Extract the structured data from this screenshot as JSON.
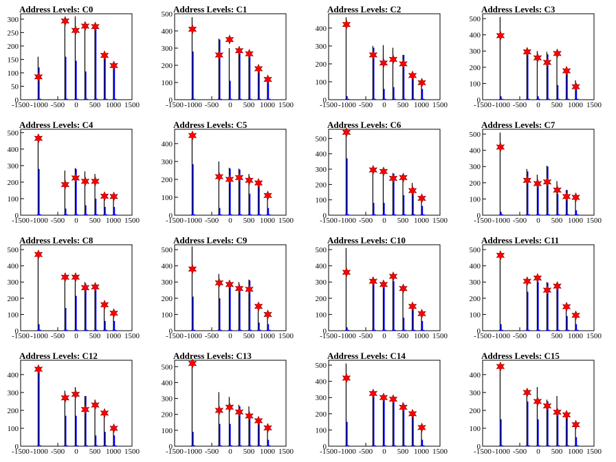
{
  "chart_data": [
    {
      "type": "histogram",
      "title": "Address Levels: C0",
      "ylim": [
        0,
        320
      ],
      "yticks": [
        0,
        50,
        100,
        150,
        200,
        250,
        300
      ],
      "xlim": [
        -1500,
        1500
      ],
      "xticks": [
        -1500,
        -1000,
        -500,
        0,
        500,
        1000,
        1500
      ],
      "peaks": [
        {
          "x": -1020,
          "black": 160,
          "blue": 120,
          "star": 85
        },
        {
          "x": -300,
          "black": 295,
          "blue": 160,
          "star": 293
        },
        {
          "x": -20,
          "black": 310,
          "blue": 145,
          "star": 258
        },
        {
          "x": 240,
          "black": 290,
          "blue": 105,
          "star": 274
        },
        {
          "x": 510,
          "black": 285,
          "blue": 280,
          "star": 272
        },
        {
          "x": 760,
          "black": 170,
          "blue": 165,
          "star": 165
        },
        {
          "x": 1010,
          "black": 130,
          "blue": 125,
          "star": 127
        }
      ]
    },
    {
      "type": "histogram",
      "title": "Address Levels: C1",
      "ylim": [
        0,
        500
      ],
      "yticks": [
        0,
        100,
        200,
        300,
        400,
        500
      ],
      "xlim": [
        -1500,
        1500
      ],
      "xticks": [
        -1500,
        -1000,
        -500,
        0,
        500,
        1000,
        1500
      ],
      "peaks": [
        {
          "x": -1020,
          "black": 480,
          "blue": 280,
          "star": 410
        },
        {
          "x": -300,
          "black": 355,
          "blue": 350,
          "star": 260
        },
        {
          "x": -20,
          "black": 300,
          "blue": 110,
          "star": 350
        },
        {
          "x": 240,
          "black": 285,
          "blue": 280,
          "star": 285
        },
        {
          "x": 510,
          "black": 270,
          "blue": 265,
          "star": 267
        },
        {
          "x": 760,
          "black": 180,
          "blue": 175,
          "star": 180
        },
        {
          "x": 1010,
          "black": 120,
          "blue": 115,
          "star": 118
        }
      ]
    },
    {
      "type": "histogram",
      "title": "Address Levels: C2",
      "ylim": [
        0,
        480
      ],
      "yticks": [
        0,
        100,
        200,
        300,
        400
      ],
      "xlim": [
        -1500,
        1500
      ],
      "xticks": [
        -1500,
        -1000,
        -500,
        0,
        500,
        1000,
        1500
      ],
      "peaks": [
        {
          "x": -1020,
          "black": 460,
          "blue": 20,
          "star": 420
        },
        {
          "x": -300,
          "black": 300,
          "blue": 290,
          "star": 250
        },
        {
          "x": -20,
          "black": 305,
          "blue": 60,
          "star": 205
        },
        {
          "x": 240,
          "black": 290,
          "blue": 70,
          "star": 225
        },
        {
          "x": 510,
          "black": 250,
          "blue": 250,
          "star": 200
        },
        {
          "x": 760,
          "black": 150,
          "blue": 145,
          "star": 135
        },
        {
          "x": 1010,
          "black": 105,
          "blue": 60,
          "star": 95
        }
      ]
    },
    {
      "type": "histogram",
      "title": "Address Levels: C3",
      "ylim": [
        0,
        530
      ],
      "yticks": [
        0,
        100,
        200,
        300,
        400,
        500
      ],
      "xlim": [
        -1500,
        1500
      ],
      "xticks": [
        -1500,
        -1000,
        -500,
        0,
        500,
        1000,
        1500
      ],
      "peaks": [
        {
          "x": -1020,
          "black": 510,
          "blue": 20,
          "star": 395
        },
        {
          "x": -300,
          "black": 300,
          "blue": 295,
          "star": 295
        },
        {
          "x": -20,
          "black": 300,
          "blue": 20,
          "star": 258
        },
        {
          "x": 240,
          "black": 295,
          "blue": 280,
          "star": 230
        },
        {
          "x": 510,
          "black": 300,
          "blue": 90,
          "star": 285
        },
        {
          "x": 760,
          "black": 180,
          "blue": 175,
          "star": 178
        },
        {
          "x": 1010,
          "black": 120,
          "blue": 100,
          "star": 80
        }
      ]
    },
    {
      "type": "histogram",
      "title": "Address Levels: C4",
      "ylim": [
        0,
        520
      ],
      "yticks": [
        0,
        100,
        200,
        300,
        400,
        500
      ],
      "xlim": [
        -1500,
        1500
      ],
      "xticks": [
        -1500,
        -1000,
        -500,
        0,
        500,
        1000,
        1500
      ],
      "peaks": [
        {
          "x": -1020,
          "black": 490,
          "blue": 280,
          "star": 465
        },
        {
          "x": -300,
          "black": 270,
          "blue": 40,
          "star": 185
        },
        {
          "x": -20,
          "black": 285,
          "blue": 280,
          "star": 225
        },
        {
          "x": 240,
          "black": 265,
          "blue": 60,
          "star": 205
        },
        {
          "x": 510,
          "black": 250,
          "blue": 100,
          "star": 205
        },
        {
          "x": 760,
          "black": 120,
          "blue": 50,
          "star": 115
        },
        {
          "x": 1010,
          "black": 120,
          "blue": 50,
          "star": 113
        }
      ]
    },
    {
      "type": "histogram",
      "title": "Address Levels: C5",
      "ylim": [
        0,
        480
      ],
      "yticks": [
        0,
        100,
        200,
        300,
        400
      ],
      "xlim": [
        -1500,
        1500
      ],
      "xticks": [
        -1500,
        -1000,
        -500,
        0,
        500,
        1000,
        1500
      ],
      "peaks": [
        {
          "x": -1020,
          "black": 460,
          "blue": 285,
          "star": 445
        },
        {
          "x": -300,
          "black": 300,
          "blue": 40,
          "star": 215
        },
        {
          "x": -20,
          "black": 265,
          "blue": 260,
          "star": 200
        },
        {
          "x": 240,
          "black": 260,
          "blue": 255,
          "star": 210
        },
        {
          "x": 510,
          "black": 230,
          "blue": 120,
          "star": 195
        },
        {
          "x": 760,
          "black": 195,
          "blue": 190,
          "star": 180
        },
        {
          "x": 1010,
          "black": 110,
          "blue": 40,
          "star": 110
        }
      ]
    },
    {
      "type": "histogram",
      "title": "Address Levels: C6",
      "ylim": [
        0,
        560
      ],
      "yticks": [
        0,
        100,
        200,
        300,
        400,
        500
      ],
      "xlim": [
        -1500,
        1500
      ],
      "xticks": [
        -1500,
        -1000,
        -500,
        0,
        500,
        1000,
        1500
      ],
      "peaks": [
        {
          "x": -1020,
          "black": 540,
          "blue": 370,
          "star": 540
        },
        {
          "x": -300,
          "black": 300,
          "blue": 80,
          "star": 295
        },
        {
          "x": -20,
          "black": 300,
          "blue": 80,
          "star": 285
        },
        {
          "x": 240,
          "black": 275,
          "blue": 270,
          "star": 240
        },
        {
          "x": 510,
          "black": 250,
          "blue": 130,
          "star": 245
        },
        {
          "x": 760,
          "black": 210,
          "blue": 180,
          "star": 160
        },
        {
          "x": 1010,
          "black": 115,
          "blue": 60,
          "star": 110
        }
      ]
    },
    {
      "type": "histogram",
      "title": "Address Levels: C7",
      "ylim": [
        0,
        530
      ],
      "yticks": [
        0,
        100,
        200,
        300,
        400,
        500
      ],
      "xlim": [
        -1500,
        1500
      ],
      "xticks": [
        -1500,
        -1000,
        -500,
        0,
        500,
        1000,
        1500
      ],
      "peaks": [
        {
          "x": -1020,
          "black": 510,
          "blue": 20,
          "star": 420
        },
        {
          "x": -300,
          "black": 285,
          "blue": 270,
          "star": 215
        },
        {
          "x": -20,
          "black": 250,
          "blue": 200,
          "star": 195
        },
        {
          "x": 240,
          "black": 305,
          "blue": 300,
          "star": 205
        },
        {
          "x": 510,
          "black": 210,
          "blue": 130,
          "star": 155
        },
        {
          "x": 760,
          "black": 155,
          "blue": 155,
          "star": 115
        },
        {
          "x": 1010,
          "black": 115,
          "blue": 30,
          "star": 110
        }
      ]
    },
    {
      "type": "histogram",
      "title": "Address Levels: C8",
      "ylim": [
        0,
        530
      ],
      "yticks": [
        0,
        100,
        200,
        300,
        400,
        500
      ],
      "xlim": [
        -1500,
        1500
      ],
      "xticks": [
        -1500,
        -1000,
        -500,
        0,
        500,
        1000,
        1500
      ],
      "peaks": [
        {
          "x": -1020,
          "black": 490,
          "blue": 40,
          "star": 470
        },
        {
          "x": -300,
          "black": 330,
          "blue": 140,
          "star": 330
        },
        {
          "x": -20,
          "black": 335,
          "blue": 215,
          "star": 330
        },
        {
          "x": 240,
          "black": 300,
          "blue": 290,
          "star": 265
        },
        {
          "x": 510,
          "black": 285,
          "blue": 280,
          "star": 270
        },
        {
          "x": 760,
          "black": 170,
          "blue": 60,
          "star": 160
        },
        {
          "x": 1010,
          "black": 110,
          "blue": 60,
          "star": 108
        }
      ]
    },
    {
      "type": "histogram",
      "title": "Address Levels: C9",
      "ylim": [
        0,
        530
      ],
      "yticks": [
        0,
        100,
        200,
        300,
        400,
        500
      ],
      "xlim": [
        -1500,
        1500
      ],
      "xticks": [
        -1500,
        -1000,
        -500,
        0,
        500,
        1000,
        1500
      ],
      "peaks": [
        {
          "x": -1020,
          "black": 520,
          "blue": 210,
          "star": 380
        },
        {
          "x": -300,
          "black": 350,
          "blue": 200,
          "star": 295
        },
        {
          "x": -20,
          "black": 310,
          "blue": 300,
          "star": 285
        },
        {
          "x": 240,
          "black": 300,
          "blue": 260,
          "star": 260
        },
        {
          "x": 510,
          "black": 315,
          "blue": 310,
          "star": 255
        },
        {
          "x": 760,
          "black": 160,
          "blue": 50,
          "star": 150
        },
        {
          "x": 1010,
          "black": 110,
          "blue": 40,
          "star": 100
        }
      ]
    },
    {
      "type": "histogram",
      "title": "Address Levels: C10",
      "ylim": [
        0,
        530
      ],
      "yticks": [
        0,
        100,
        200,
        300,
        400,
        500
      ],
      "xlim": [
        -1500,
        1500
      ],
      "xticks": [
        -1500,
        -1000,
        -500,
        0,
        500,
        1000,
        1500
      ],
      "peaks": [
        {
          "x": -1020,
          "black": 510,
          "blue": 20,
          "star": 360
        },
        {
          "x": -300,
          "black": 330,
          "blue": 320,
          "star": 305
        },
        {
          "x": -20,
          "black": 310,
          "blue": 300,
          "star": 285
        },
        {
          "x": 240,
          "black": 340,
          "blue": 305,
          "star": 335
        },
        {
          "x": 510,
          "black": 270,
          "blue": 80,
          "star": 260
        },
        {
          "x": 760,
          "black": 170,
          "blue": 160,
          "star": 150
        },
        {
          "x": 1010,
          "black": 110,
          "blue": 60,
          "star": 105
        }
      ]
    },
    {
      "type": "histogram",
      "title": "Address Levels: C11",
      "ylim": [
        0,
        530
      ],
      "yticks": [
        0,
        100,
        200,
        300,
        400,
        500
      ],
      "xlim": [
        -1500,
        1500
      ],
      "xticks": [
        -1500,
        -1000,
        -500,
        0,
        500,
        1000,
        1500
      ],
      "peaks": [
        {
          "x": -1020,
          "black": 490,
          "blue": 40,
          "star": 465
        },
        {
          "x": -300,
          "black": 310,
          "blue": 240,
          "star": 305
        },
        {
          "x": -20,
          "black": 330,
          "blue": 300,
          "star": 325
        },
        {
          "x": 240,
          "black": 300,
          "blue": 295,
          "star": 250
        },
        {
          "x": 510,
          "black": 285,
          "blue": 280,
          "star": 275
        },
        {
          "x": 760,
          "black": 150,
          "blue": 90,
          "star": 148
        },
        {
          "x": 1010,
          "black": 110,
          "blue": 40,
          "star": 95
        }
      ]
    },
    {
      "type": "histogram",
      "title": "Address Levels: C12",
      "ylim": [
        0,
        480
      ],
      "yticks": [
        0,
        100,
        200,
        300,
        400
      ],
      "xlim": [
        -1500,
        1500
      ],
      "xticks": [
        -1500,
        -1000,
        -500,
        0,
        500,
        1000,
        1500
      ],
      "peaks": [
        {
          "x": -1020,
          "black": 440,
          "blue": 430,
          "star": 430
        },
        {
          "x": -300,
          "black": 310,
          "blue": 170,
          "star": 270
        },
        {
          "x": -20,
          "black": 330,
          "blue": 170,
          "star": 290
        },
        {
          "x": 240,
          "black": 280,
          "blue": 280,
          "star": 205
        },
        {
          "x": 510,
          "black": 260,
          "blue": 60,
          "star": 230
        },
        {
          "x": 760,
          "black": 190,
          "blue": 80,
          "star": 185
        },
        {
          "x": 1010,
          "black": 110,
          "blue": 60,
          "star": 100
        }
      ]
    },
    {
      "type": "histogram",
      "title": "Address Levels: C13",
      "ylim": [
        0,
        540
      ],
      "yticks": [
        0,
        100,
        200,
        300,
        400,
        500
      ],
      "xlim": [
        -1500,
        1500
      ],
      "xticks": [
        -1500,
        -1000,
        -500,
        0,
        500,
        1000,
        1500
      ],
      "peaks": [
        {
          "x": -1020,
          "black": 520,
          "blue": 90,
          "star": 520
        },
        {
          "x": -300,
          "black": 340,
          "blue": 140,
          "star": 225
        },
        {
          "x": -20,
          "black": 310,
          "blue": 140,
          "star": 245
        },
        {
          "x": 240,
          "black": 260,
          "blue": 250,
          "star": 215
        },
        {
          "x": 510,
          "black": 250,
          "blue": 200,
          "star": 190
        },
        {
          "x": 760,
          "black": 170,
          "blue": 160,
          "star": 160
        },
        {
          "x": 1010,
          "black": 120,
          "blue": 40,
          "star": 115
        }
      ]
    },
    {
      "type": "histogram",
      "title": "Address Levels: C14",
      "ylim": [
        0,
        530
      ],
      "yticks": [
        0,
        100,
        200,
        300,
        400,
        500
      ],
      "xlim": [
        -1500,
        1500
      ],
      "xticks": [
        -1500,
        -1000,
        -500,
        0,
        500,
        1000,
        1500
      ],
      "peaks": [
        {
          "x": -1020,
          "black": 510,
          "blue": 150,
          "star": 420
        },
        {
          "x": -300,
          "black": 320,
          "blue": 310,
          "star": 325
        },
        {
          "x": -20,
          "black": 310,
          "blue": 300,
          "star": 300
        },
        {
          "x": 240,
          "black": 300,
          "blue": 290,
          "star": 290
        },
        {
          "x": 510,
          "black": 270,
          "blue": 260,
          "star": 240
        },
        {
          "x": 760,
          "black": 200,
          "blue": 190,
          "star": 200
        },
        {
          "x": 1010,
          "black": 120,
          "blue": 40,
          "star": 115
        }
      ]
    },
    {
      "type": "histogram",
      "title": "Address Levels: C15",
      "ylim": [
        0,
        480
      ],
      "yticks": [
        0,
        100,
        200,
        300,
        400
      ],
      "xlim": [
        -1500,
        1500
      ],
      "xticks": [
        -1500,
        -1000,
        -500,
        0,
        500,
        1000,
        1500
      ],
      "peaks": [
        {
          "x": -1020,
          "black": 460,
          "blue": 150,
          "star": 445
        },
        {
          "x": -300,
          "black": 310,
          "blue": 250,
          "star": 300
        },
        {
          "x": -20,
          "black": 330,
          "blue": 150,
          "star": 250
        },
        {
          "x": 240,
          "black": 260,
          "blue": 250,
          "star": 225
        },
        {
          "x": 510,
          "black": 280,
          "blue": 200,
          "star": 190
        },
        {
          "x": 760,
          "black": 180,
          "blue": 170,
          "star": 175
        },
        {
          "x": 1010,
          "black": 130,
          "blue": 50,
          "star": 120
        }
      ]
    }
  ],
  "colors": {
    "hist_outline": "#000000",
    "hist_fill": "#0000ff",
    "marker_fill": "#ff0000",
    "marker_edge": "#800000"
  }
}
